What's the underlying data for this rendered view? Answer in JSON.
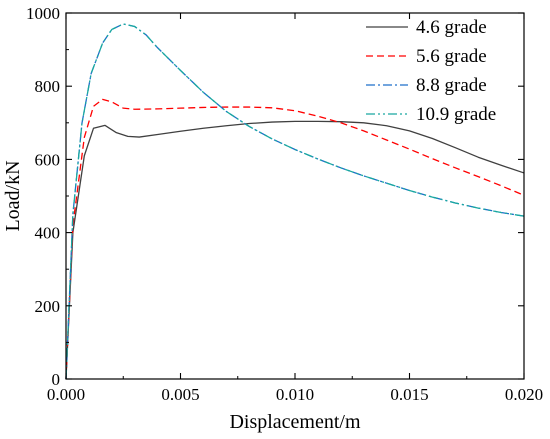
{
  "chart_data": {
    "type": "line",
    "title": "",
    "xlabel": "Displacement/m",
    "ylabel": "Load/kN",
    "xlim": [
      0,
      0.02
    ],
    "ylim": [
      0,
      1000
    ],
    "x_ticks": [
      "0.000",
      "0.005",
      "0.010",
      "0.015",
      "0.020"
    ],
    "y_ticks": [
      "0",
      "200",
      "400",
      "600",
      "800",
      "1000"
    ],
    "grid": false,
    "legend_position": "top-right",
    "series": [
      {
        "name": "4.6 grade",
        "color": "#404040",
        "dash": "solid",
        "points": [
          [
            0,
            0
          ],
          [
            0.0003,
            400
          ],
          [
            0.0008,
            610
          ],
          [
            0.0012,
            685
          ],
          [
            0.0017,
            693
          ],
          [
            0.0022,
            673
          ],
          [
            0.0027,
            663
          ],
          [
            0.0032,
            661
          ],
          [
            0.004,
            668
          ],
          [
            0.005,
            677
          ],
          [
            0.006,
            685
          ],
          [
            0.007,
            692
          ],
          [
            0.008,
            698
          ],
          [
            0.009,
            702
          ],
          [
            0.01,
            704
          ],
          [
            0.011,
            704
          ],
          [
            0.012,
            703
          ],
          [
            0.013,
            700
          ],
          [
            0.014,
            692
          ],
          [
            0.015,
            678
          ],
          [
            0.016,
            657
          ],
          [
            0.017,
            632
          ],
          [
            0.018,
            606
          ],
          [
            0.019,
            584
          ],
          [
            0.02,
            563
          ]
        ]
      },
      {
        "name": "5.6 grade",
        "color": "#ff0000",
        "dash": "dashed",
        "points": [
          [
            0,
            0
          ],
          [
            0.0003,
            420
          ],
          [
            0.0008,
            660
          ],
          [
            0.0012,
            745
          ],
          [
            0.0016,
            764
          ],
          [
            0.002,
            757
          ],
          [
            0.0025,
            740
          ],
          [
            0.003,
            737
          ],
          [
            0.004,
            738
          ],
          [
            0.005,
            740
          ],
          [
            0.006,
            742
          ],
          [
            0.007,
            743
          ],
          [
            0.008,
            743
          ],
          [
            0.009,
            741
          ],
          [
            0.01,
            733
          ],
          [
            0.011,
            718
          ],
          [
            0.012,
            700
          ],
          [
            0.013,
            678
          ],
          [
            0.014,
            653
          ],
          [
            0.015,
            628
          ],
          [
            0.016,
            602
          ],
          [
            0.017,
            577
          ],
          [
            0.018,
            553
          ],
          [
            0.019,
            528
          ],
          [
            0.02,
            502
          ]
        ]
      },
      {
        "name": "8.8 grade",
        "color": "#1f6fc9",
        "dash": "dashdot",
        "points": [
          [
            0,
            0
          ],
          [
            0.0003,
            450
          ],
          [
            0.0007,
            700
          ],
          [
            0.0011,
            835
          ],
          [
            0.0016,
            918
          ],
          [
            0.002,
            955
          ],
          [
            0.0025,
            970
          ],
          [
            0.003,
            963
          ],
          [
            0.0035,
            940
          ],
          [
            0.004,
            905
          ],
          [
            0.005,
            843
          ],
          [
            0.006,
            783
          ],
          [
            0.007,
            731
          ],
          [
            0.008,
            690
          ],
          [
            0.009,
            656
          ],
          [
            0.01,
            627
          ],
          [
            0.011,
            601
          ],
          [
            0.012,
            577
          ],
          [
            0.013,
            555
          ],
          [
            0.014,
            535
          ],
          [
            0.015,
            515
          ],
          [
            0.016,
            497
          ],
          [
            0.017,
            481
          ],
          [
            0.018,
            467
          ],
          [
            0.019,
            455
          ],
          [
            0.02,
            445
          ]
        ]
      },
      {
        "name": "10.9 grade",
        "color": "#19a8a0",
        "dash": "dashdotdot",
        "points": [
          [
            0,
            0
          ],
          [
            0.0003,
            450
          ],
          [
            0.0007,
            700
          ],
          [
            0.0011,
            835
          ],
          [
            0.0016,
            918
          ],
          [
            0.002,
            955
          ],
          [
            0.0025,
            970
          ],
          [
            0.003,
            963
          ],
          [
            0.0035,
            940
          ],
          [
            0.004,
            905
          ],
          [
            0.005,
            843
          ],
          [
            0.006,
            783
          ],
          [
            0.007,
            731
          ],
          [
            0.008,
            690
          ],
          [
            0.009,
            656
          ],
          [
            0.01,
            627
          ],
          [
            0.011,
            601
          ],
          [
            0.012,
            577
          ],
          [
            0.013,
            555
          ],
          [
            0.014,
            535
          ],
          [
            0.015,
            515
          ],
          [
            0.016,
            497
          ],
          [
            0.017,
            481
          ],
          [
            0.018,
            467
          ],
          [
            0.019,
            455
          ],
          [
            0.02,
            445
          ]
        ]
      }
    ]
  }
}
